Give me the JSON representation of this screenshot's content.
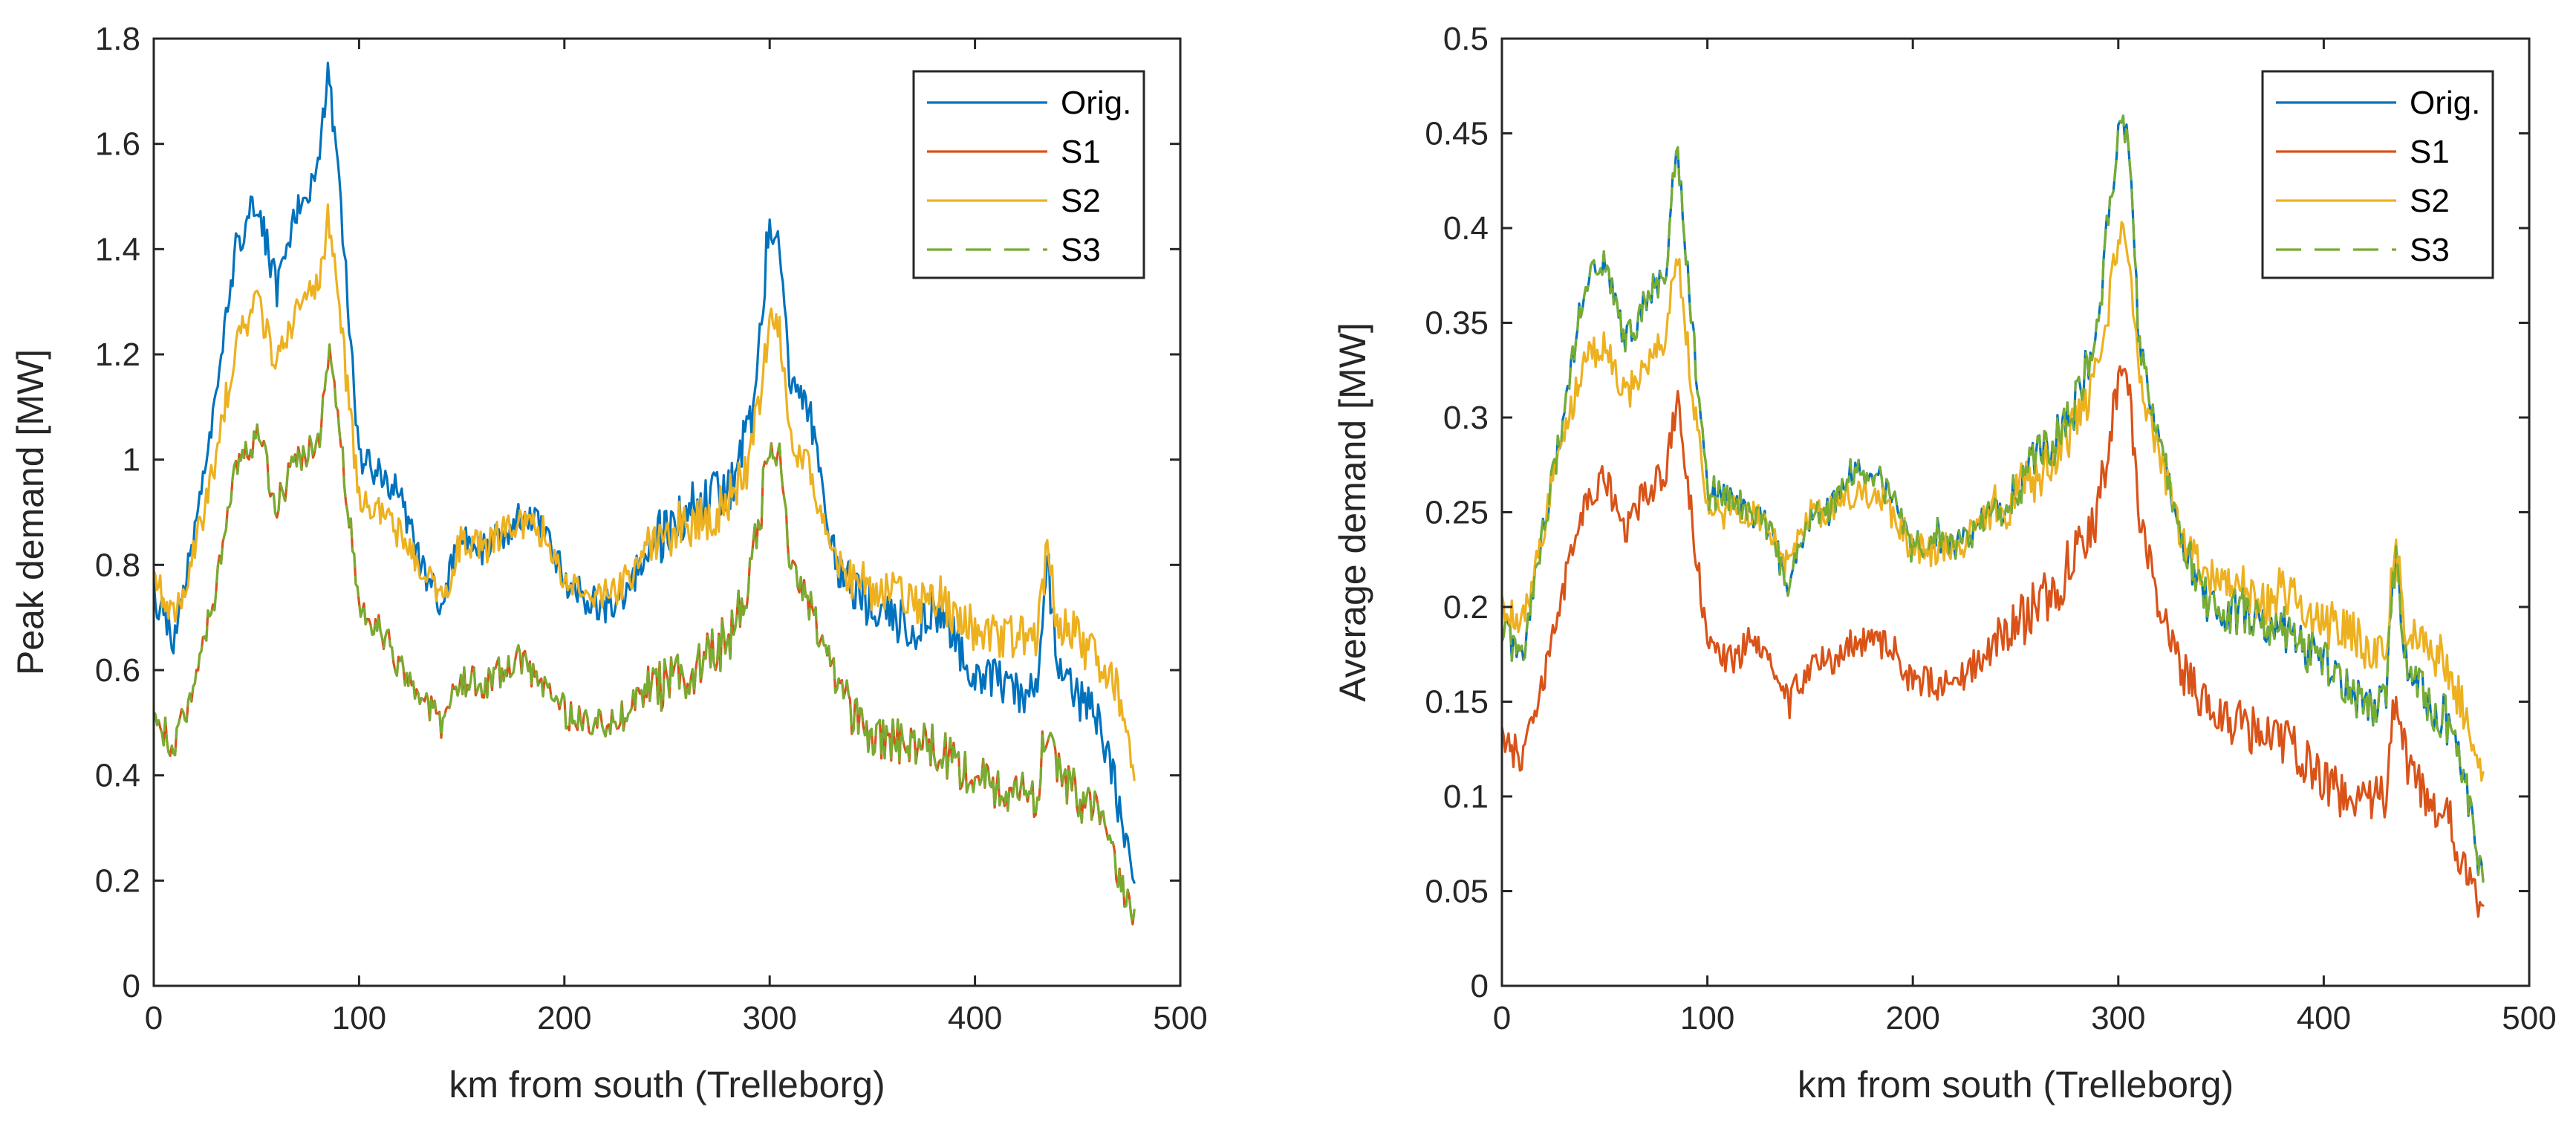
{
  "chart_data": [
    {
      "type": "line",
      "title": "",
      "xlabel": "km from south (Trelleborg)",
      "ylabel": "Peak demand [MW]",
      "xlim": [
        0,
        500
      ],
      "ylim": [
        0,
        1.8
      ],
      "xticks": [
        0,
        100,
        200,
        300,
        400,
        500
      ],
      "xtick_labels": [
        "0",
        "100",
        "200",
        "300",
        "400",
        "500"
      ],
      "yticks": [
        0,
        0.2,
        0.4,
        0.6,
        0.8,
        1,
        1.2,
        1.4,
        1.6,
        1.8
      ],
      "ytick_labels": [
        "0",
        "0.2",
        "0.4",
        "0.6",
        "0.8",
        "1",
        "1.2",
        "1.4",
        "1.6",
        "1.8"
      ],
      "legend_position": "top-right",
      "series": [
        {
          "name": "Orig.",
          "color": "#0072BD",
          "dash": "solid",
          "x": [
            0,
            10,
            20,
            30,
            40,
            50,
            60,
            70,
            80,
            85,
            90,
            100,
            110,
            120,
            130,
            140,
            150,
            160,
            170,
            180,
            190,
            200,
            210,
            220,
            230,
            240,
            250,
            260,
            270,
            280,
            290,
            300,
            305,
            310,
            320,
            330,
            340,
            350,
            360,
            370,
            380,
            390,
            400,
            410,
            420,
            430,
            435,
            440,
            450,
            460,
            470,
            478
          ],
          "values": [
            0.74,
            0.66,
            0.85,
            1.1,
            1.4,
            1.5,
            1.32,
            1.48,
            1.55,
            1.74,
            1.55,
            1.0,
            0.98,
            0.93,
            0.8,
            0.72,
            0.86,
            0.83,
            0.86,
            0.9,
            0.88,
            0.77,
            0.74,
            0.72,
            0.75,
            0.82,
            0.87,
            0.9,
            0.92,
            0.95,
            1.05,
            1.45,
            1.42,
            1.15,
            1.08,
            0.82,
            0.76,
            0.72,
            0.7,
            0.68,
            0.72,
            0.66,
            0.6,
            0.58,
            0.56,
            0.55,
            0.82,
            0.62,
            0.55,
            0.5,
            0.35,
            0.18
          ]
        },
        {
          "name": "S1",
          "color": "#D95319",
          "dash": "solid",
          "x": [
            0,
            10,
            20,
            30,
            40,
            50,
            60,
            70,
            80,
            85,
            90,
            100,
            110,
            120,
            130,
            140,
            150,
            160,
            170,
            180,
            190,
            200,
            210,
            220,
            230,
            240,
            250,
            260,
            270,
            280,
            290,
            300,
            305,
            310,
            320,
            330,
            340,
            350,
            360,
            370,
            380,
            390,
            400,
            410,
            420,
            430,
            435,
            440,
            450,
            460,
            470,
            478
          ],
          "values": [
            0.5,
            0.46,
            0.58,
            0.75,
            0.98,
            1.05,
            0.92,
            1.0,
            1.02,
            1.21,
            1.08,
            0.72,
            0.68,
            0.6,
            0.55,
            0.5,
            0.58,
            0.57,
            0.6,
            0.62,
            0.57,
            0.52,
            0.51,
            0.5,
            0.52,
            0.56,
            0.58,
            0.6,
            0.62,
            0.66,
            0.75,
            1.03,
            1.0,
            0.8,
            0.72,
            0.6,
            0.52,
            0.48,
            0.47,
            0.45,
            0.46,
            0.42,
            0.4,
            0.38,
            0.36,
            0.36,
            0.5,
            0.4,
            0.36,
            0.32,
            0.2,
            0.12
          ]
        },
        {
          "name": "S2",
          "color": "#EDB120",
          "dash": "solid",
          "x": [
            0,
            10,
            20,
            30,
            40,
            50,
            60,
            70,
            80,
            85,
            90,
            100,
            110,
            120,
            130,
            140,
            150,
            160,
            170,
            180,
            190,
            200,
            210,
            220,
            230,
            240,
            250,
            260,
            270,
            280,
            290,
            300,
            305,
            310,
            320,
            330,
            340,
            350,
            360,
            370,
            380,
            390,
            400,
            410,
            420,
            430,
            435,
            440,
            450,
            460,
            470,
            478
          ],
          "values": [
            0.77,
            0.7,
            0.83,
            1.0,
            1.22,
            1.3,
            1.18,
            1.28,
            1.33,
            1.46,
            1.3,
            0.92,
            0.9,
            0.86,
            0.8,
            0.73,
            0.85,
            0.83,
            0.86,
            0.88,
            0.86,
            0.78,
            0.76,
            0.74,
            0.77,
            0.82,
            0.86,
            0.88,
            0.9,
            0.92,
            0.98,
            1.27,
            1.24,
            1.03,
            0.98,
            0.8,
            0.78,
            0.75,
            0.74,
            0.72,
            0.75,
            0.7,
            0.68,
            0.67,
            0.66,
            0.65,
            0.84,
            0.7,
            0.66,
            0.62,
            0.55,
            0.38
          ]
        },
        {
          "name": "S3",
          "color": "#77AC30",
          "dash": "dashed",
          "x": [
            0,
            10,
            20,
            30,
            40,
            50,
            60,
            70,
            80,
            85,
            90,
            100,
            110,
            120,
            130,
            140,
            150,
            160,
            170,
            180,
            190,
            200,
            210,
            220,
            230,
            240,
            250,
            260,
            270,
            280,
            290,
            300,
            305,
            310,
            320,
            330,
            340,
            350,
            360,
            370,
            380,
            390,
            400,
            410,
            420,
            430,
            435,
            440,
            450,
            460,
            470,
            478
          ],
          "values": [
            0.5,
            0.46,
            0.58,
            0.75,
            0.98,
            1.05,
            0.92,
            1.0,
            1.02,
            1.21,
            1.08,
            0.72,
            0.68,
            0.6,
            0.55,
            0.5,
            0.58,
            0.57,
            0.6,
            0.62,
            0.57,
            0.52,
            0.51,
            0.5,
            0.52,
            0.56,
            0.58,
            0.6,
            0.62,
            0.66,
            0.75,
            1.03,
            1.0,
            0.8,
            0.72,
            0.6,
            0.52,
            0.48,
            0.47,
            0.45,
            0.46,
            0.42,
            0.4,
            0.38,
            0.36,
            0.36,
            0.5,
            0.4,
            0.36,
            0.32,
            0.2,
            0.12
          ]
        }
      ]
    },
    {
      "type": "line",
      "title": "",
      "xlabel": "km from south (Trelleborg)",
      "ylabel": "Average demand [MW]",
      "xlim": [
        0,
        500
      ],
      "ylim": [
        0,
        0.5
      ],
      "xticks": [
        0,
        100,
        200,
        300,
        400,
        500
      ],
      "xtick_labels": [
        "0",
        "100",
        "200",
        "300",
        "400",
        "500"
      ],
      "yticks": [
        0,
        0.05,
        0.1,
        0.15,
        0.2,
        0.25,
        0.3,
        0.35,
        0.4,
        0.45,
        0.5
      ],
      "ytick_labels": [
        "0",
        "0.05",
        "0.1",
        "0.15",
        "0.2",
        "0.25",
        "0.3",
        "0.35",
        "0.4",
        "0.45",
        "0.5"
      ],
      "legend_position": "top-right",
      "series": [
        {
          "name": "Orig.",
          "color": "#0072BD",
          "dash": "solid",
          "x": [
            0,
            10,
            20,
            30,
            40,
            50,
            60,
            70,
            80,
            85,
            90,
            100,
            110,
            120,
            130,
            140,
            150,
            160,
            170,
            180,
            190,
            200,
            210,
            220,
            230,
            240,
            250,
            260,
            270,
            280,
            290,
            300,
            305,
            310,
            320,
            330,
            340,
            350,
            360,
            370,
            380,
            390,
            400,
            410,
            420,
            430,
            435,
            440,
            450,
            460,
            470,
            478
          ],
          "values": [
            0.19,
            0.17,
            0.24,
            0.3,
            0.37,
            0.38,
            0.34,
            0.36,
            0.38,
            0.45,
            0.38,
            0.26,
            0.26,
            0.25,
            0.24,
            0.21,
            0.25,
            0.25,
            0.27,
            0.27,
            0.26,
            0.23,
            0.24,
            0.23,
            0.24,
            0.25,
            0.26,
            0.28,
            0.29,
            0.31,
            0.34,
            0.46,
            0.45,
            0.34,
            0.29,
            0.24,
            0.21,
            0.19,
            0.2,
            0.19,
            0.19,
            0.18,
            0.17,
            0.16,
            0.15,
            0.15,
            0.23,
            0.17,
            0.15,
            0.14,
            0.1,
            0.05
          ]
        },
        {
          "name": "S1",
          "color": "#D95319",
          "dash": "solid",
          "x": [
            0,
            10,
            20,
            30,
            40,
            50,
            60,
            70,
            80,
            85,
            90,
            100,
            110,
            120,
            130,
            140,
            150,
            160,
            170,
            180,
            190,
            200,
            210,
            220,
            230,
            240,
            250,
            260,
            270,
            280,
            290,
            300,
            305,
            310,
            320,
            330,
            340,
            350,
            360,
            370,
            380,
            390,
            400,
            410,
            420,
            430,
            435,
            440,
            450,
            460,
            470,
            478
          ],
          "values": [
            0.13,
            0.12,
            0.16,
            0.21,
            0.25,
            0.27,
            0.24,
            0.26,
            0.27,
            0.31,
            0.27,
            0.18,
            0.17,
            0.18,
            0.17,
            0.15,
            0.17,
            0.17,
            0.18,
            0.18,
            0.18,
            0.16,
            0.16,
            0.16,
            0.17,
            0.18,
            0.19,
            0.2,
            0.21,
            0.23,
            0.25,
            0.32,
            0.32,
            0.25,
            0.2,
            0.17,
            0.15,
            0.14,
            0.14,
            0.13,
            0.13,
            0.12,
            0.11,
            0.1,
            0.1,
            0.1,
            0.16,
            0.12,
            0.1,
            0.09,
            0.06,
            0.035
          ]
        },
        {
          "name": "S2",
          "color": "#EDB120",
          "dash": "solid",
          "x": [
            0,
            10,
            20,
            30,
            40,
            50,
            60,
            70,
            80,
            85,
            90,
            100,
            110,
            120,
            130,
            140,
            150,
            160,
            170,
            180,
            190,
            200,
            210,
            220,
            230,
            240,
            250,
            260,
            270,
            280,
            290,
            300,
            305,
            310,
            320,
            330,
            340,
            350,
            360,
            370,
            380,
            390,
            400,
            410,
            420,
            430,
            435,
            440,
            450,
            460,
            470,
            478
          ],
          "values": [
            0.2,
            0.19,
            0.24,
            0.29,
            0.33,
            0.34,
            0.31,
            0.33,
            0.34,
            0.39,
            0.34,
            0.25,
            0.25,
            0.25,
            0.24,
            0.22,
            0.25,
            0.25,
            0.26,
            0.26,
            0.25,
            0.23,
            0.23,
            0.23,
            0.24,
            0.25,
            0.26,
            0.27,
            0.28,
            0.3,
            0.32,
            0.4,
            0.39,
            0.32,
            0.28,
            0.24,
            0.22,
            0.21,
            0.21,
            0.2,
            0.21,
            0.2,
            0.19,
            0.19,
            0.18,
            0.18,
            0.23,
            0.19,
            0.18,
            0.17,
            0.14,
            0.11
          ]
        },
        {
          "name": "S3",
          "color": "#77AC30",
          "dash": "dashed",
          "x": [
            0,
            10,
            20,
            30,
            40,
            50,
            60,
            70,
            80,
            85,
            90,
            100,
            110,
            120,
            130,
            140,
            150,
            160,
            170,
            180,
            190,
            200,
            210,
            220,
            230,
            240,
            250,
            260,
            270,
            280,
            290,
            300,
            305,
            310,
            320,
            330,
            340,
            350,
            360,
            370,
            380,
            390,
            400,
            410,
            420,
            430,
            435,
            440,
            450,
            460,
            470,
            478
          ],
          "values": [
            0.19,
            0.17,
            0.24,
            0.3,
            0.37,
            0.38,
            0.34,
            0.36,
            0.38,
            0.45,
            0.38,
            0.26,
            0.26,
            0.25,
            0.24,
            0.21,
            0.25,
            0.25,
            0.27,
            0.27,
            0.26,
            0.23,
            0.24,
            0.23,
            0.24,
            0.25,
            0.26,
            0.28,
            0.29,
            0.31,
            0.34,
            0.46,
            0.45,
            0.34,
            0.29,
            0.24,
            0.21,
            0.19,
            0.2,
            0.19,
            0.19,
            0.18,
            0.17,
            0.16,
            0.15,
            0.15,
            0.23,
            0.17,
            0.15,
            0.14,
            0.1,
            0.05
          ]
        }
      ]
    }
  ]
}
